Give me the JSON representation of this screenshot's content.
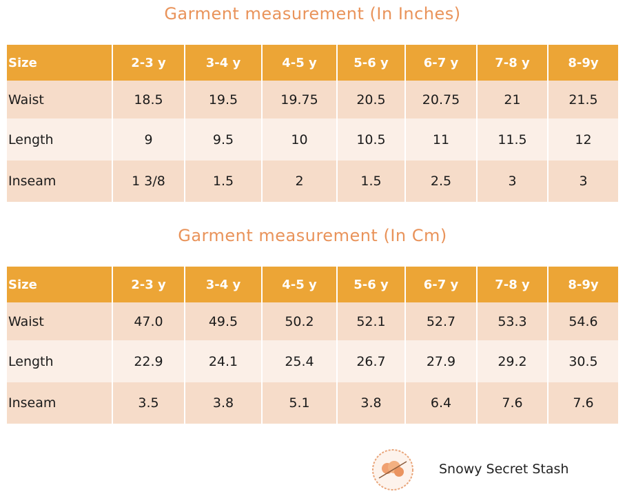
{
  "tables": [
    {
      "title": "Garment measurement (In Inches)",
      "header": [
        "Size",
        "2-3 y",
        "3-4 y",
        "4-5 y",
        "5-6 y",
        "6-7 y",
        "7-8 y",
        "8-9y"
      ],
      "rows": [
        [
          "Waist",
          "18.5",
          "19.5",
          "19.75",
          "20.5",
          "20.75",
          "21",
          "21.5"
        ],
        [
          "Length",
          "9",
          "9.5",
          "10",
          "10.5",
          "11",
          "11.5",
          "12"
        ],
        [
          "Inseam",
          "1 3/8",
          "1.5",
          "2",
          "1.5",
          "2.5",
          "3",
          "3"
        ]
      ]
    },
    {
      "title": "Garment measurement (In Cm)",
      "header": [
        "Size",
        "2-3 y",
        "3-4 y",
        "4-5 y",
        "5-6 y",
        "6-7 y",
        "7-8 y",
        "8-9y"
      ],
      "rows": [
        [
          "Waist",
          "47.0",
          "49.5",
          "50.2",
          "52.1",
          "52.7",
          "53.3",
          "54.6"
        ],
        [
          "Length",
          "22.9",
          "24.1",
          "25.4",
          "26.7",
          "27.9",
          "29.2",
          "30.5"
        ],
        [
          "Inseam",
          "3.5",
          "3.8",
          "5.1",
          "3.8",
          "6.4",
          "7.6",
          "7.6"
        ]
      ]
    }
  ],
  "logo": {
    "text": "Snowy Secret Stash"
  }
}
